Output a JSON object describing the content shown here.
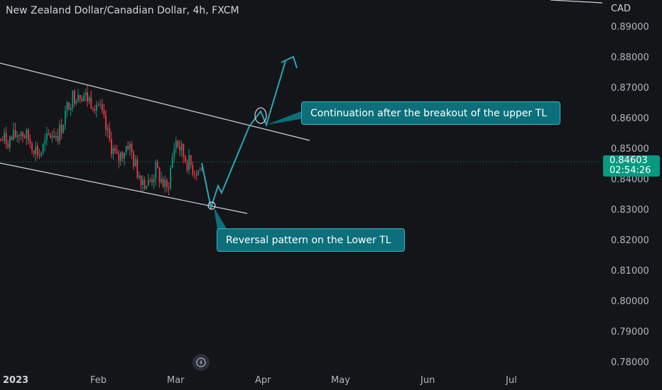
{
  "header": {
    "symbol_title": "New Zealand Dollar/Canadian Dollar, 4h, FXCM",
    "currency": "CAD"
  },
  "price_tag": {
    "price": "0.84603",
    "countdown": "02:54:26",
    "color": "#089981"
  },
  "annotations": {
    "upper": "Continuation after the breakout of the upper TL",
    "lower": "Reversal pattern on the Lower TL"
  },
  "colors": {
    "up": "#089981",
    "down": "#f23645",
    "projection": "#2aa7b8",
    "trendline": "#d1d4dc",
    "background": "#141518"
  },
  "icons": {
    "replay": "flash-icon"
  },
  "chart_data": {
    "type": "candlestick",
    "title": "New Zealand Dollar/Canadian Dollar, 4h, FXCM",
    "x_ticks": [
      "2023",
      "Feb",
      "Mar",
      "Apr",
      "May",
      "Jun",
      "Jul"
    ],
    "y_ticks": [
      "0.89000",
      "0.88000",
      "0.87000",
      "0.86000",
      "0.85000",
      "0.84000",
      "0.83000",
      "0.82000",
      "0.81000",
      "0.80000",
      "0.79000",
      "0.78000"
    ],
    "ylim": [
      0.7775,
      0.8952
    ],
    "last_price": 0.84603,
    "price_path": [
      [
        "2023-01-02",
        0.853
      ],
      [
        "2023-01-05",
        0.856
      ],
      [
        "2023-01-09",
        0.852
      ],
      [
        "2023-01-12",
        0.848
      ],
      [
        "2023-01-16",
        0.855
      ],
      [
        "2023-01-19",
        0.855
      ],
      [
        "2023-01-23",
        0.866
      ],
      [
        "2023-01-26",
        0.869
      ],
      [
        "2023-01-30",
        0.866
      ],
      [
        "2023-02-02",
        0.865
      ],
      [
        "2023-02-06",
        0.853
      ],
      [
        "2023-02-09",
        0.846
      ],
      [
        "2023-02-13",
        0.852
      ],
      [
        "2023-02-16",
        0.843
      ],
      [
        "2023-02-20",
        0.838
      ],
      [
        "2023-02-23",
        0.843
      ],
      [
        "2023-02-27",
        0.836
      ],
      [
        "2023-03-02",
        0.853
      ],
      [
        "2023-03-06",
        0.846
      ],
      [
        "2023-03-09",
        0.843
      ]
    ],
    "upper_trendline": [
      [
        "2022-12-29",
        0.8785
      ],
      [
        "2023-04-04",
        0.8543
      ]
    ],
    "lower_trendline": [
      [
        "2022-12-29",
        0.8456
      ],
      [
        "2023-03-23",
        0.8289
      ]
    ],
    "projection_path": [
      [
        "2023-03-09",
        0.8459
      ],
      [
        "2023-03-15",
        0.8301
      ],
      [
        "2023-03-18",
        0.8374
      ],
      [
        "2023-03-20",
        0.8358
      ],
      [
        "2023-03-27",
        0.8582
      ],
      [
        "2023-03-29",
        0.8631
      ],
      [
        "2023-03-31",
        0.8587
      ],
      [
        "2023-04-06",
        0.8793
      ]
    ],
    "marked_points": [
      [
        "2023-03-15",
        0.8311
      ],
      [
        "2023-03-29",
        0.8614
      ]
    ]
  }
}
